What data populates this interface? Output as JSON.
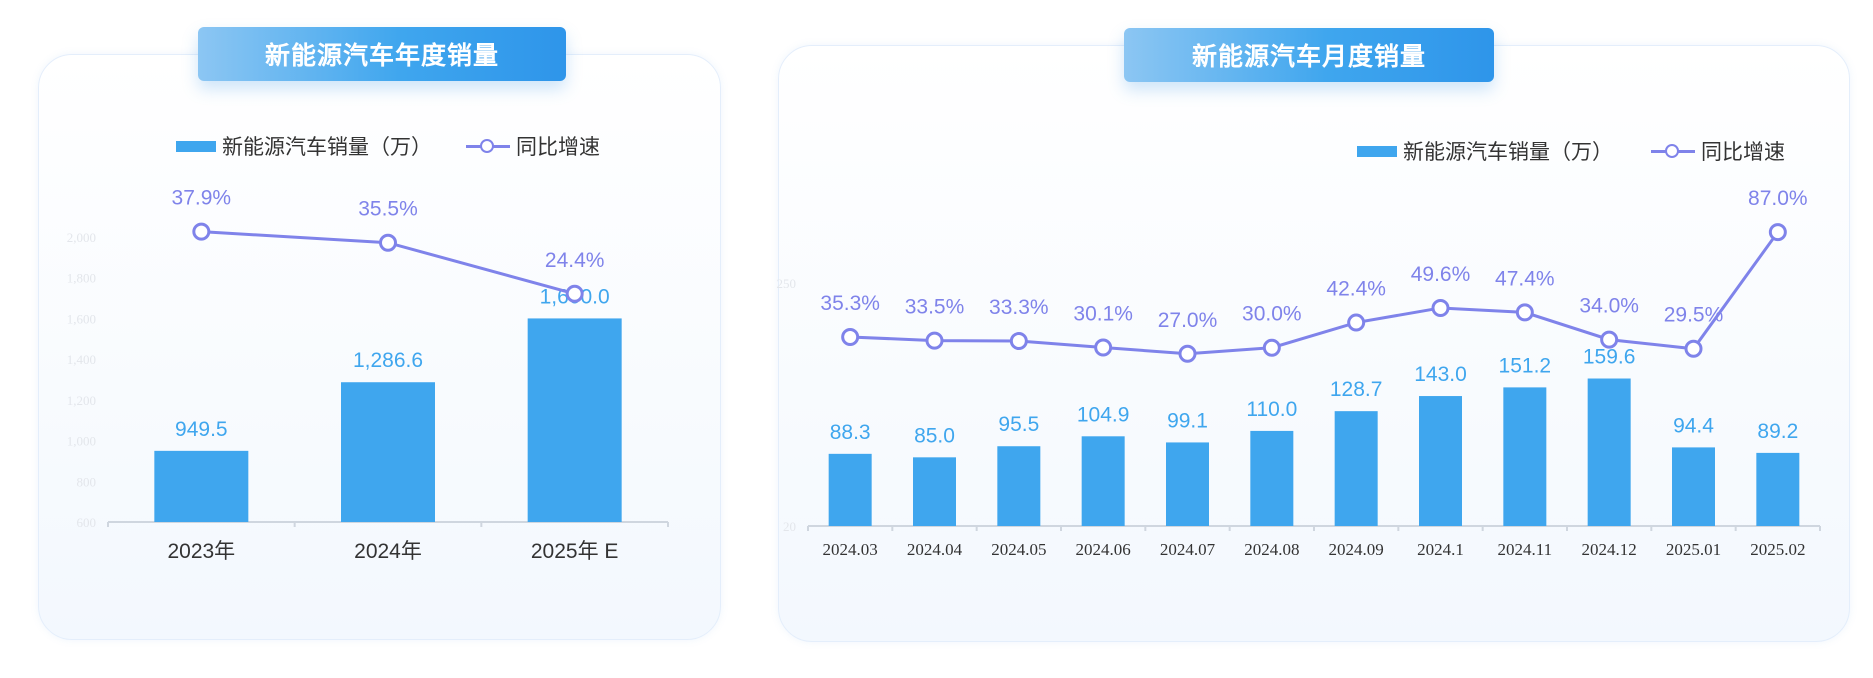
{
  "colors": {
    "bar": "#3fa6ee",
    "line": "#7f83ea",
    "axis": "#cfd6df",
    "bar_label": "#3fa6ee",
    "line_label": "#7f83ea",
    "faint": "#e3e6eb"
  },
  "left_panel": {
    "title": "新能源汽车年度销量",
    "legend": {
      "bar": "新能源汽车销量（万）",
      "line": "同比增速"
    }
  },
  "right_panel": {
    "title": "新能源汽车月度销量",
    "legend": {
      "bar": "新能源汽车销量（万）",
      "line": "同比增速"
    }
  },
  "chart_data": [
    {
      "type": "bar",
      "title": "新能源汽车年度销量",
      "categories": [
        "2023年",
        "2024年",
        "2025年 E"
      ],
      "series": [
        {
          "name": "新能源汽车销量（万）",
          "type": "bar",
          "values": [
            949.5,
            1286.6,
            1600.0
          ],
          "labels": [
            "949.5",
            "1,286.6",
            "1,600.0"
          ]
        },
        {
          "name": "同比增速",
          "type": "line",
          "values": [
            37.9,
            35.5,
            24.4
          ],
          "labels": [
            "37.9%",
            "35.5%",
            "24.4%"
          ]
        }
      ],
      "ylim": [
        600,
        2000
      ],
      "yticks": [
        "600",
        "800",
        "1,000",
        "1,200",
        "1,400",
        "1,600",
        "1,800",
        "2,000"
      ],
      "legend": "top-center"
    },
    {
      "type": "bar",
      "title": "新能源汽车月度销量",
      "categories": [
        "2024.03",
        "2024.04",
        "2024.05",
        "2024.06",
        "2024.07",
        "2024.08",
        "2024.09",
        "2024.1",
        "2024.11",
        "2024.12",
        "2025.01",
        "2025.02"
      ],
      "series": [
        {
          "name": "新能源汽车销量（万）",
          "type": "bar",
          "values": [
            88.3,
            85.0,
            95.5,
            104.9,
            99.1,
            110.0,
            128.7,
            143.0,
            151.2,
            159.6,
            94.4,
            89.2
          ],
          "labels": [
            "88.3",
            "85.0",
            "95.5",
            "104.9",
            "99.1",
            "110.0",
            "128.7",
            "143.0",
            "151.2",
            "159.6",
            "94.4",
            "89.2"
          ]
        },
        {
          "name": "同比增速",
          "type": "line",
          "values": [
            35.3,
            33.5,
            33.3,
            30.1,
            27.0,
            30.0,
            42.4,
            49.6,
            47.4,
            34.0,
            29.5,
            87.0
          ],
          "labels": [
            "35.3%",
            "33.5%",
            "33.3%",
            "30.1%",
            "27.0%",
            "30.0%",
            "42.4%",
            "49.6%",
            "47.4%",
            "34.0%",
            "29.5%",
            "87.0%"
          ]
        }
      ],
      "ylim": [
        20,
        250
      ],
      "yticks": [
        "20",
        "250"
      ],
      "legend": "top-right"
    }
  ]
}
